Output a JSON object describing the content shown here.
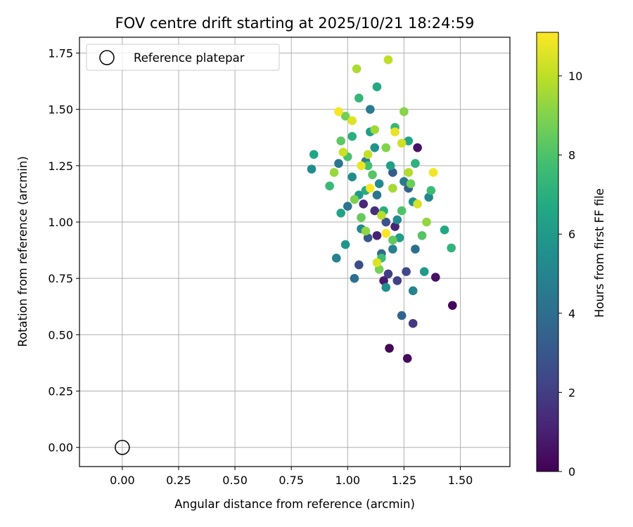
{
  "chart_data": {
    "type": "scatter",
    "title": "FOV centre drift starting at 2025/10/21 18:24:59",
    "xlabel": "Angular distance from reference (arcmin)",
    "ylabel": "Rotation from reference (arcmin)",
    "xlim": [
      -0.19,
      1.72
    ],
    "ylim": [
      -0.085,
      1.82
    ],
    "xticks": [
      0.0,
      0.25,
      0.5,
      0.75,
      1.0,
      1.25,
      1.5
    ],
    "xtick_labels": [
      "0.00",
      "0.25",
      "0.50",
      "0.75",
      "1.00",
      "1.25",
      "1.50"
    ],
    "yticks": [
      0.0,
      0.25,
      0.5,
      0.75,
      1.0,
      1.25,
      1.5,
      1.75
    ],
    "ytick_labels": [
      "0.00",
      "0.25",
      "0.50",
      "0.75",
      "1.00",
      "1.25",
      "1.50",
      "1.75"
    ],
    "grid": true,
    "legend": {
      "location": "upper-left",
      "entries": [
        "Reference platepar"
      ]
    },
    "reference_point": {
      "x": 0.0,
      "y": 0.0,
      "label": "Reference platepar"
    },
    "colorbar": {
      "label": "Hours from first FF file",
      "range": [
        0,
        11.1
      ],
      "ticks": [
        0,
        2,
        4,
        6,
        8,
        10
      ],
      "tick_labels": [
        "0",
        "2",
        "4",
        "6",
        "8",
        "10"
      ],
      "colormap": "viridis"
    },
    "points": [
      [
        1.465,
        0.63,
        0.1
      ],
      [
        1.185,
        0.44,
        0.2
      ],
      [
        1.265,
        0.395,
        0.3
      ],
      [
        1.39,
        0.755,
        0.5
      ],
      [
        1.31,
        1.33,
        0.6
      ],
      [
        1.16,
        0.74,
        0.8
      ],
      [
        1.13,
        0.94,
        1.0
      ],
      [
        1.21,
        0.98,
        1.1
      ],
      [
        1.07,
        1.08,
        1.3
      ],
      [
        1.12,
        1.05,
        1.5
      ],
      [
        1.29,
        0.55,
        1.8
      ],
      [
        1.18,
        0.77,
        2.0
      ],
      [
        1.22,
        0.74,
        2.2
      ],
      [
        1.26,
        0.78,
        2.4
      ],
      [
        1.05,
        0.81,
        2.6
      ],
      [
        1.17,
        1.0,
        2.8
      ],
      [
        1.09,
        0.93,
        3.0
      ],
      [
        1.2,
        1.22,
        3.2
      ],
      [
        1.27,
        1.15,
        3.4
      ],
      [
        1.24,
        0.585,
        3.6
      ],
      [
        1.15,
        0.86,
        3.8
      ],
      [
        1.03,
        0.75,
        4.0
      ],
      [
        1.3,
        0.88,
        4.1
      ],
      [
        1.0,
        1.07,
        4.2
      ],
      [
        1.13,
        1.12,
        4.3
      ],
      [
        0.96,
        1.26,
        4.4
      ],
      [
        1.25,
        1.18,
        4.5
      ],
      [
        1.1,
        1.5,
        4.6
      ],
      [
        1.08,
        1.27,
        4.7
      ],
      [
        1.2,
        0.88,
        4.8
      ],
      [
        0.95,
        0.84,
        4.9
      ],
      [
        1.29,
        0.695,
        5.0
      ],
      [
        1.36,
        1.11,
        5.1
      ],
      [
        1.06,
        0.97,
        5.2
      ],
      [
        1.14,
        1.17,
        5.2
      ],
      [
        1.22,
        1.01,
        5.3
      ],
      [
        0.84,
        1.235,
        5.4
      ],
      [
        1.02,
        1.2,
        5.4
      ],
      [
        1.17,
        0.71,
        5.5
      ],
      [
        1.29,
        1.09,
        5.6
      ],
      [
        1.12,
        1.33,
        5.7
      ],
      [
        0.99,
        0.9,
        5.8
      ],
      [
        1.05,
        1.12,
        5.9
      ],
      [
        1.34,
        0.78,
        6.0
      ],
      [
        1.23,
        0.93,
        6.1
      ],
      [
        1.1,
        1.4,
        6.2
      ],
      [
        1.19,
        1.25,
        6.3
      ],
      [
        0.97,
        1.04,
        6.4
      ],
      [
        1.27,
        1.36,
        6.5
      ],
      [
        0.85,
        1.3,
        6.6
      ],
      [
        1.43,
        0.965,
        6.6
      ],
      [
        1.13,
        1.6,
        6.7
      ],
      [
        1.08,
        1.14,
        6.8
      ],
      [
        1.16,
        1.05,
        6.9
      ],
      [
        1.02,
        1.38,
        7.0
      ],
      [
        1.3,
        1.26,
        7.1
      ],
      [
        1.46,
        0.885,
        7.2
      ],
      [
        1.05,
        1.55,
        7.3
      ],
      [
        1.21,
        1.42,
        7.4
      ],
      [
        0.92,
        1.16,
        7.5
      ],
      [
        1.37,
        1.14,
        7.6
      ],
      [
        1.15,
        0.84,
        7.7
      ],
      [
        1.09,
        1.25,
        7.8
      ],
      [
        1.0,
        1.29,
        7.9
      ],
      [
        1.24,
        1.05,
        8.0
      ],
      [
        1.33,
        0.94,
        8.1
      ],
      [
        1.11,
        1.21,
        8.2
      ],
      [
        0.97,
        1.36,
        8.3
      ],
      [
        1.2,
        0.92,
        8.4
      ],
      [
        1.06,
        1.02,
        8.5
      ],
      [
        1.28,
        1.17,
        8.6
      ],
      [
        0.99,
        1.47,
        8.7
      ],
      [
        1.14,
        0.79,
        8.8
      ],
      [
        1.03,
        1.1,
        8.9
      ],
      [
        1.17,
        1.33,
        9.0
      ],
      [
        1.25,
        1.49,
        9.1
      ],
      [
        1.08,
        0.96,
        9.2
      ],
      [
        1.35,
        1.0,
        9.3
      ],
      [
        0.94,
        1.22,
        9.4
      ],
      [
        1.12,
        1.41,
        9.5
      ],
      [
        1.2,
        1.15,
        9.6
      ],
      [
        1.04,
        1.68,
        9.7
      ],
      [
        1.27,
        1.22,
        9.8
      ],
      [
        1.15,
        1.03,
        9.9
      ],
      [
        1.18,
        1.72,
        10.0
      ],
      [
        1.09,
        1.3,
        10.1
      ],
      [
        0.98,
        1.31,
        10.2
      ],
      [
        1.24,
        1.35,
        10.3
      ],
      [
        1.31,
        1.08,
        10.4
      ],
      [
        1.13,
        0.82,
        10.5
      ],
      [
        1.02,
        1.45,
        10.6
      ],
      [
        1.21,
        1.4,
        10.7
      ],
      [
        1.06,
        1.25,
        10.8
      ],
      [
        1.38,
        1.22,
        10.9
      ],
      [
        1.17,
        0.95,
        11.0
      ],
      [
        1.1,
        1.15,
        11.0
      ],
      [
        0.96,
        1.49,
        11.0
      ]
    ]
  }
}
